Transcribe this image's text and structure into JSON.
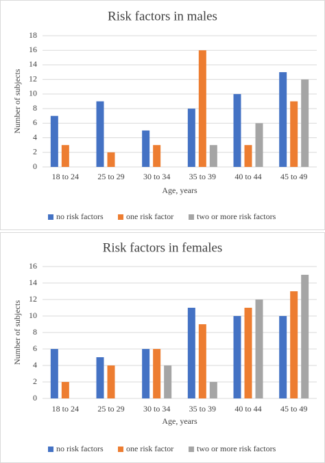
{
  "chart_data": [
    {
      "type": "bar",
      "title": "Risk factors in males",
      "x_label": "Age, years",
      "y_label": "Number of subjects",
      "categories": [
        "18 to 24",
        "25 to 29",
        "30 to 34",
        "35 to 39",
        "40 to 44",
        "45 to 49"
      ],
      "series": [
        {
          "name": "no risk factors",
          "color": "#4472c4",
          "values": [
            7,
            9,
            5,
            8,
            10,
            13
          ]
        },
        {
          "name": "one risk factor",
          "color": "#ed7d31",
          "values": [
            3,
            2,
            3,
            16,
            3,
            9
          ]
        },
        {
          "name": "two or more risk factors",
          "color": "#a5a5a5",
          "values": [
            0,
            0,
            0,
            3,
            6,
            12
          ]
        }
      ],
      "ylim": [
        0,
        18
      ],
      "yticks": [
        0,
        2,
        4,
        6,
        8,
        10,
        12,
        14,
        16,
        18
      ],
      "grid": true,
      "legend": "bottom"
    },
    {
      "type": "bar",
      "title": "Risk factors in females",
      "x_label": "Age, years",
      "y_label": "Number of subjects",
      "categories": [
        "18 to 24",
        "25 to 29",
        "30 to 34",
        "35 to 39",
        "40 to 44",
        "45 to 49"
      ],
      "series": [
        {
          "name": "no risk factors",
          "color": "#4472c4",
          "values": [
            6,
            5,
            6,
            11,
            10,
            10
          ]
        },
        {
          "name": "one risk factor",
          "color": "#ed7d31",
          "values": [
            2,
            4,
            6,
            9,
            11,
            13
          ]
        },
        {
          "name": "two or more risk factors",
          "color": "#a5a5a5",
          "values": [
            0,
            0,
            4,
            2,
            12,
            15
          ]
        }
      ],
      "ylim": [
        0,
        16
      ],
      "yticks": [
        0,
        2,
        4,
        6,
        8,
        10,
        12,
        14,
        16
      ],
      "grid": true,
      "legend": "bottom"
    }
  ]
}
